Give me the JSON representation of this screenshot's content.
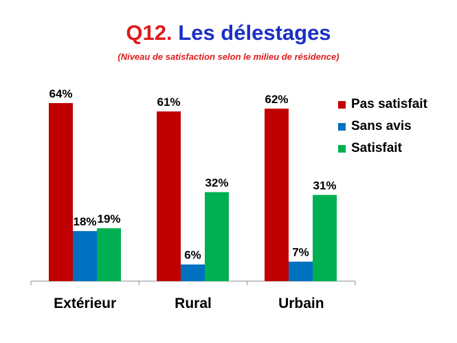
{
  "title": {
    "prefix": "Q12.",
    "main": "Les délestages"
  },
  "subtitle": "(Niveau de satisfaction selon le milieu de résidence)",
  "chart_data": {
    "type": "bar",
    "categories": [
      "Extérieur",
      "Rural",
      "Urbain"
    ],
    "series": [
      {
        "name": "Pas satisfait",
        "color": "#c00000",
        "values": [
          64,
          61,
          62
        ],
        "labels": [
          "64%",
          "61%",
          "62%"
        ]
      },
      {
        "name": "Sans avis",
        "color": "#0070c0",
        "values": [
          18,
          6,
          7
        ],
        "labels": [
          "18%",
          "6%",
          "7%"
        ]
      },
      {
        "name": "Satisfait",
        "color": "#00b050",
        "values": [
          19,
          32,
          31
        ],
        "labels": [
          "19%",
          "32%",
          "31%"
        ]
      }
    ],
    "ylim": [
      0,
      70
    ],
    "grid": false,
    "legend_position": "right"
  }
}
